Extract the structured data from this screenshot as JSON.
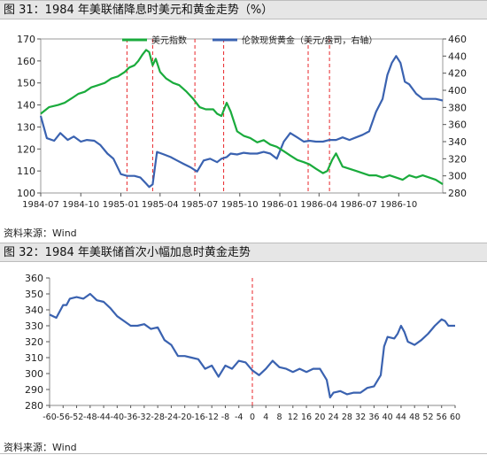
{
  "figures": [
    {
      "title": "图 31：1984 年美联储降息时美元和黄金走势（%）",
      "source": "资料来源：Wind"
    },
    {
      "title": "图 32：1984 年美联储首次小幅加息时黄金走势",
      "source": "资料来源：Wind"
    }
  ],
  "colors": {
    "green": "#1aab3c",
    "blue": "#3a62b0",
    "red": "#e8262a",
    "axis": "#333333"
  },
  "chart_data": [
    {
      "type": "line",
      "title": "",
      "x_tick_labels": [
        "1984-07",
        "1984-10",
        "1985-01",
        "1985-04",
        "1985-07",
        "1985-10",
        "1986-01",
        "1986-04",
        "1986-07",
        "1986-10"
      ],
      "y_left": {
        "ylim": [
          100,
          170
        ],
        "ticks": [
          100,
          110,
          120,
          130,
          140,
          150,
          160,
          170
        ]
      },
      "y_right": {
        "ylim": [
          280,
          460
        ],
        "ticks": [
          280,
          300,
          320,
          340,
          360,
          380,
          400,
          420,
          440,
          460
        ]
      },
      "legend": {
        "placement": "top",
        "entries": [
          "美元指数",
          "伦敦现货黄金（美元/盎司，右轴）"
        ]
      },
      "vlines_x": [
        "1985-01-15",
        "1985-03-15",
        "1985-06-20",
        "1985-08-25",
        "1986-03-07",
        "1986-04-25"
      ],
      "series": [
        {
          "name": "美元指数",
          "axis": "left",
          "color": "green",
          "points": [
            [
              "1984-07-01",
              136
            ],
            [
              "1984-07-20",
              139
            ],
            [
              "1984-08-10",
              140
            ],
            [
              "1984-08-25",
              141
            ],
            [
              "1984-09-10",
              143
            ],
            [
              "1984-09-25",
              145
            ],
            [
              "1984-10-10",
              146
            ],
            [
              "1984-10-25",
              148
            ],
            [
              "1984-11-10",
              149
            ],
            [
              "1984-11-25",
              150
            ],
            [
              "1984-12-10",
              152
            ],
            [
              "1984-12-25",
              153
            ],
            [
              "1985-01-10",
              155
            ],
            [
              "1985-01-20",
              157
            ],
            [
              "1985-02-01",
              158
            ],
            [
              "1985-02-10",
              160
            ],
            [
              "1985-02-20",
              163
            ],
            [
              "1985-02-28",
              165
            ],
            [
              "1985-03-07",
              164
            ],
            [
              "1985-03-15",
              158
            ],
            [
              "1985-03-22",
              161
            ],
            [
              "1985-04-01",
              155
            ],
            [
              "1985-04-15",
              152
            ],
            [
              "1985-05-01",
              150
            ],
            [
              "1985-05-15",
              149
            ],
            [
              "1985-06-01",
              146
            ],
            [
              "1985-06-15",
              143
            ],
            [
              "1985-07-01",
              139
            ],
            [
              "1985-07-15",
              138
            ],
            [
              "1985-08-01",
              138
            ],
            [
              "1985-08-10",
              136
            ],
            [
              "1985-08-20",
              135
            ],
            [
              "1985-09-01",
              141
            ],
            [
              "1985-09-10",
              137
            ],
            [
              "1985-09-25",
              128
            ],
            [
              "1985-10-10",
              126
            ],
            [
              "1985-10-25",
              125
            ],
            [
              "1985-11-10",
              123
            ],
            [
              "1985-11-25",
              124
            ],
            [
              "1985-12-10",
              122
            ],
            [
              "1985-12-25",
              121
            ],
            [
              "1986-01-10",
              119
            ],
            [
              "1986-01-25",
              117
            ],
            [
              "1986-02-10",
              115
            ],
            [
              "1986-02-25",
              114
            ],
            [
              "1986-03-10",
              113
            ],
            [
              "1986-03-25",
              111
            ],
            [
              "1986-04-10",
              109
            ],
            [
              "1986-04-20",
              110
            ],
            [
              "1986-05-01",
              115
            ],
            [
              "1986-05-10",
              118
            ],
            [
              "1986-05-25",
              112
            ],
            [
              "1986-06-10",
              111
            ],
            [
              "1986-06-25",
              110
            ],
            [
              "1986-07-10",
              109
            ],
            [
              "1986-07-25",
              108
            ],
            [
              "1986-08-10",
              108
            ],
            [
              "1986-08-25",
              107
            ],
            [
              "1986-09-10",
              108
            ],
            [
              "1986-09-25",
              107
            ],
            [
              "1986-10-10",
              106
            ],
            [
              "1986-10-25",
              108
            ],
            [
              "1986-11-10",
              107
            ],
            [
              "1986-11-25",
              108
            ],
            [
              "1986-12-10",
              107
            ],
            [
              "1986-12-25",
              106
            ],
            [
              "1987-01-10",
              104
            ]
          ]
        },
        {
          "name": "伦敦现货黄金（美元/盎司，右轴）",
          "axis": "right",
          "color": "blue",
          "points": [
            [
              "1984-07-01",
              370
            ],
            [
              "1984-07-15",
              344
            ],
            [
              "1984-08-01",
              341
            ],
            [
              "1984-08-15",
              350
            ],
            [
              "1984-09-01",
              342
            ],
            [
              "1984-09-15",
              346
            ],
            [
              "1984-10-01",
              340
            ],
            [
              "1984-10-15",
              342
            ],
            [
              "1984-11-01",
              341
            ],
            [
              "1984-11-15",
              336
            ],
            [
              "1984-12-01",
              326
            ],
            [
              "1984-12-15",
              320
            ],
            [
              "1985-01-01",
              302
            ],
            [
              "1985-01-15",
              300
            ],
            [
              "1985-02-01",
              300
            ],
            [
              "1985-02-15",
              298
            ],
            [
              "1985-02-28",
              291
            ],
            [
              "1985-03-07",
              287
            ],
            [
              "1985-03-15",
              290
            ],
            [
              "1985-03-25",
              328
            ],
            [
              "1985-04-10",
              325
            ],
            [
              "1985-04-25",
              322
            ],
            [
              "1985-05-10",
              318
            ],
            [
              "1985-05-25",
              314
            ],
            [
              "1985-06-10",
              310
            ],
            [
              "1985-06-25",
              305
            ],
            [
              "1985-07-10",
              318
            ],
            [
              "1985-07-25",
              320
            ],
            [
              "1985-08-10",
              316
            ],
            [
              "1985-08-20",
              320
            ],
            [
              "1985-09-01",
              322
            ],
            [
              "1985-09-10",
              326
            ],
            [
              "1985-09-25",
              325
            ],
            [
              "1985-10-10",
              327
            ],
            [
              "1985-10-25",
              326
            ],
            [
              "1985-11-10",
              326
            ],
            [
              "1985-11-25",
              328
            ],
            [
              "1985-12-10",
              326
            ],
            [
              "1985-12-25",
              320
            ],
            [
              "1986-01-10",
              340
            ],
            [
              "1986-01-25",
              350
            ],
            [
              "1986-02-10",
              345
            ],
            [
              "1986-02-25",
              340
            ],
            [
              "1986-03-10",
              341
            ],
            [
              "1986-03-25",
              340
            ],
            [
              "1986-04-10",
              340
            ],
            [
              "1986-04-25",
              342
            ],
            [
              "1986-05-10",
              342
            ],
            [
              "1986-05-25",
              345
            ],
            [
              "1986-06-10",
              342
            ],
            [
              "1986-06-25",
              345
            ],
            [
              "1986-07-10",
              348
            ],
            [
              "1986-07-25",
              352
            ],
            [
              "1986-08-10",
              375
            ],
            [
              "1986-08-25",
              390
            ],
            [
              "1986-09-05",
              418
            ],
            [
              "1986-09-15",
              432
            ],
            [
              "1986-09-25",
              440
            ],
            [
              "1986-10-05",
              432
            ],
            [
              "1986-10-15",
              410
            ],
            [
              "1986-10-25",
              407
            ],
            [
              "1986-11-10",
              396
            ],
            [
              "1986-11-25",
              390
            ],
            [
              "1986-12-10",
              390
            ],
            [
              "1986-12-25",
              390
            ],
            [
              "1987-01-10",
              388
            ]
          ]
        }
      ]
    },
    {
      "type": "line",
      "title": "",
      "x_tick_labels": [
        "-60",
        "-56",
        "-52",
        "-48",
        "-44",
        "-40",
        "-36",
        "-32",
        "-28",
        "-24",
        "-20",
        "-16",
        "-12",
        "-8",
        "-4",
        "0",
        "4",
        "8",
        "12",
        "16",
        "20",
        "24",
        "28",
        "32",
        "36",
        "40",
        "44",
        "48",
        "52",
        "56",
        "60"
      ],
      "xlim": [
        -60,
        60
      ],
      "ylim": [
        280,
        360
      ],
      "y_ticks": [
        280,
        290,
        300,
        310,
        320,
        330,
        340,
        350,
        360
      ],
      "vline_x": 0,
      "series": [
        {
          "color": "blue",
          "points": [
            [
              -60,
              337
            ],
            [
              -58,
              335
            ],
            [
              -56,
              343
            ],
            [
              -55,
              343
            ],
            [
              -54,
              347
            ],
            [
              -52,
              348
            ],
            [
              -50,
              347
            ],
            [
              -48,
              350
            ],
            [
              -46,
              346
            ],
            [
              -44,
              345
            ],
            [
              -42,
              341
            ],
            [
              -40,
              336
            ],
            [
              -38,
              333
            ],
            [
              -36,
              330
            ],
            [
              -34,
              330
            ],
            [
              -32,
              331
            ],
            [
              -30,
              328
            ],
            [
              -28,
              329
            ],
            [
              -26,
              321
            ],
            [
              -24,
              318
            ],
            [
              -22,
              311
            ],
            [
              -20,
              311
            ],
            [
              -18,
              310
            ],
            [
              -16,
              309
            ],
            [
              -14,
              303
            ],
            [
              -12,
              305
            ],
            [
              -10,
              298
            ],
            [
              -8,
              305
            ],
            [
              -6,
              303
            ],
            [
              -4,
              308
            ],
            [
              -2,
              307
            ],
            [
              0,
              302
            ],
            [
              2,
              299
            ],
            [
              4,
              303
            ],
            [
              6,
              308
            ],
            [
              8,
              304
            ],
            [
              10,
              303
            ],
            [
              12,
              301
            ],
            [
              14,
              303
            ],
            [
              16,
              301
            ],
            [
              18,
              303
            ],
            [
              20,
              303
            ],
            [
              22,
              296
            ],
            [
              23,
              285
            ],
            [
              24,
              288
            ],
            [
              26,
              289
            ],
            [
              28,
              287
            ],
            [
              30,
              288
            ],
            [
              32,
              288
            ],
            [
              34,
              291
            ],
            [
              36,
              292
            ],
            [
              38,
              299
            ],
            [
              39,
              317
            ],
            [
              40,
              323
            ],
            [
              42,
              322
            ],
            [
              43,
              325
            ],
            [
              44,
              330
            ],
            [
              45,
              326
            ],
            [
              46,
              320
            ],
            [
              48,
              318
            ],
            [
              50,
              321
            ],
            [
              52,
              325
            ],
            [
              54,
              330
            ],
            [
              56,
              334
            ],
            [
              57,
              333
            ],
            [
              58,
              330
            ],
            [
              60,
              330
            ]
          ]
        }
      ]
    }
  ]
}
